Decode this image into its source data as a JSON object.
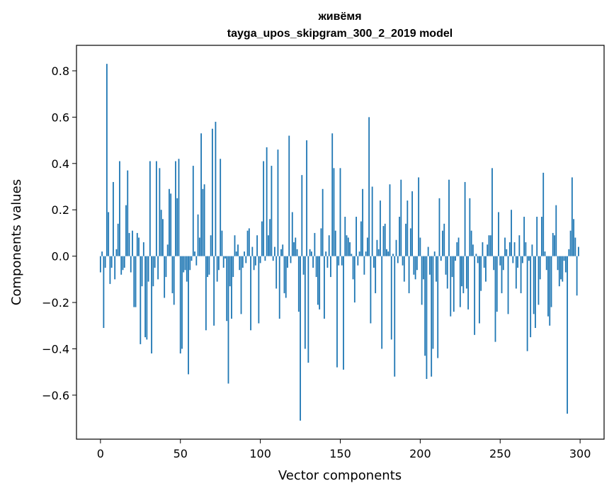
{
  "chart_data": {
    "type": "bar",
    "title": "живёмя",
    "subtitle": "tayga_upos_skipgram_300_2_2019 model",
    "xlabel": "Vector components",
    "ylabel": "Components values",
    "xlim": [
      -15,
      315
    ],
    "ylim": [
      -0.79,
      0.91
    ],
    "xticks": [
      0,
      50,
      100,
      150,
      200,
      250,
      300
    ],
    "xtick_labels": [
      "0",
      "50",
      "100",
      "150",
      "200",
      "250",
      "300"
    ],
    "yticks": [
      -0.6,
      -0.4,
      -0.2,
      0.0,
      0.2,
      0.4,
      0.6,
      0.8
    ],
    "ytick_labels": [
      "−0.6",
      "−0.4",
      "−0.2",
      "0.0",
      "0.2",
      "0.4",
      "0.6",
      "0.8"
    ],
    "grid": false,
    "bar_color": "#1f77b4",
    "values": [
      -0.07,
      0.02,
      -0.31,
      -0.05,
      0.83,
      0.19,
      -0.12,
      -0.05,
      0.32,
      -0.1,
      0.03,
      0.14,
      0.41,
      -0.08,
      -0.06,
      -0.05,
      0.22,
      0.37,
      0.1,
      -0.07,
      0.11,
      -0.22,
      -0.22,
      0.1,
      0.08,
      -0.38,
      -0.13,
      0.06,
      -0.35,
      -0.36,
      -0.11,
      0.41,
      -0.42,
      -0.13,
      -0.05,
      0.41,
      -0.1,
      0.38,
      0.2,
      0.16,
      -0.18,
      -0.09,
      0.05,
      0.29,
      0.27,
      -0.16,
      -0.21,
      0.41,
      0.25,
      0.42,
      -0.42,
      -0.4,
      -0.07,
      -0.06,
      -0.11,
      -0.51,
      -0.06,
      -0.02,
      0.39,
      0.02,
      -0.04,
      0.18,
      0.08,
      0.53,
      0.29,
      0.31,
      -0.32,
      -0.09,
      -0.08,
      0.09,
      0.55,
      -0.3,
      0.58,
      -0.11,
      -0.06,
      0.42,
      0.11,
      -0.05,
      -0.01,
      -0.28,
      -0.55,
      -0.13,
      -0.27,
      -0.09,
      0.09,
      0.02,
      0.05,
      -0.06,
      -0.25,
      -0.05,
      0.02,
      -0.03,
      0.11,
      0.12,
      -0.32,
      0.04,
      -0.06,
      -0.04,
      0.09,
      -0.29,
      -0.03,
      0.15,
      0.41,
      -0.02,
      0.47,
      0.09,
      0.16,
      0.39,
      -0.02,
      0.04,
      -0.14,
      0.46,
      -0.27,
      0.03,
      0.05,
      -0.16,
      -0.18,
      -0.05,
      0.52,
      -0.03,
      0.19,
      0.06,
      0.08,
      0.03,
      -0.24,
      -0.71,
      0.35,
      -0.08,
      -0.4,
      0.5,
      -0.46,
      0.03,
      0.02,
      -0.05,
      0.1,
      -0.09,
      -0.21,
      -0.23,
      0.12,
      0.29,
      -0.27,
      0.02,
      -0.05,
      0.09,
      -0.09,
      0.53,
      0.38,
      0.11,
      -0.48,
      -0.04,
      0.38,
      -0.04,
      -0.49,
      0.17,
      0.09,
      0.08,
      0.06,
      0.01,
      -0.1,
      -0.2,
      0.17,
      -0.04,
      0.02,
      0.15,
      0.29,
      -0.08,
      0.02,
      0.08,
      0.6,
      -0.29,
      0.3,
      -0.05,
      -0.16,
      0.07,
      0.03,
      0.24,
      -0.4,
      0.13,
      0.14,
      0.03,
      0.02,
      0.31,
      -0.36,
      0.01,
      -0.52,
      0.07,
      -0.03,
      0.17,
      0.33,
      -0.04,
      -0.11,
      0.14,
      0.24,
      -0.16,
      0.12,
      0.28,
      -0.08,
      -0.1,
      -0.06,
      0.34,
      0.08,
      -0.21,
      -0.1,
      -0.43,
      -0.53,
      0.04,
      -0.08,
      -0.52,
      -0.4,
      0.02,
      -0.11,
      -0.44,
      0.25,
      -0.02,
      0.11,
      0.14,
      -0.08,
      -0.14,
      0.33,
      -0.26,
      -0.09,
      -0.24,
      -0.02,
      0.06,
      0.08,
      -0.22,
      -0.13,
      -0.16,
      0.32,
      -0.14,
      -0.23,
      0.25,
      0.11,
      0.05,
      -0.34,
      0.01,
      -0.03,
      -0.29,
      -0.15,
      0.06,
      -0.05,
      -0.11,
      0.05,
      0.09,
      0.09,
      0.38,
      -0.06,
      -0.37,
      -0.24,
      0.19,
      -0.04,
      -0.16,
      -0.06,
      0.08,
      0.03,
      -0.25,
      0.06,
      0.2,
      -0.03,
      0.06,
      -0.14,
      -0.05,
      0.09,
      -0.16,
      -0.03,
      0.17,
      0.06,
      -0.41,
      -0.02,
      -0.35,
      0.05,
      -0.25,
      -0.31,
      0.17,
      -0.21,
      -0.1,
      0.17,
      0.36,
      0.02,
      -0.06,
      -0.26,
      -0.3,
      -0.22,
      0.1,
      0.09,
      0.22,
      -0.06,
      -0.13,
      -0.1,
      -0.11,
      -0.02,
      -0.07,
      -0.68,
      0.03,
      0.11,
      0.34,
      0.16,
      0.08,
      -0.17,
      0.04
    ]
  }
}
